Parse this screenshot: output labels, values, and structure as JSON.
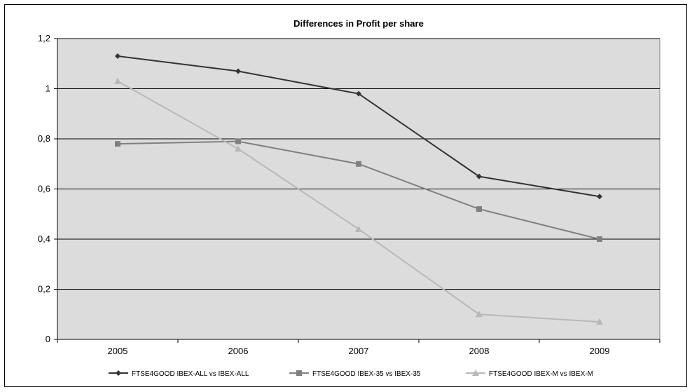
{
  "chart_data": {
    "type": "line",
    "title": "Differences in Profit per share",
    "categories": [
      "2005",
      "2006",
      "2007",
      "2008",
      "2009"
    ],
    "ylim": [
      0,
      1.2
    ],
    "yticks": [
      "0",
      "0,2",
      "0,4",
      "0,6",
      "0,8",
      "1",
      "1,2"
    ],
    "grid": true,
    "legend_position": "bottom",
    "series": [
      {
        "name": "FTSE4GOOD IBEX-ALL vs IBEX-ALL",
        "values": [
          1.13,
          1.07,
          0.98,
          0.65,
          0.57
        ],
        "marker": "diamond",
        "color": "#333333"
      },
      {
        "name": "FTSE4GOOD IBEX-35 vs IBEX-35",
        "values": [
          0.78,
          0.79,
          0.7,
          0.52,
          0.4
        ],
        "marker": "square",
        "color": "#808080"
      },
      {
        "name": "FTSE4GOOD IBEX-M vs IBEX-M",
        "values": [
          1.03,
          0.76,
          0.44,
          0.1,
          0.07
        ],
        "marker": "triangle",
        "color": "#b8b8b8"
      }
    ],
    "colors": {
      "plot_background": "#dcdcdc",
      "gridline": "#000000"
    }
  }
}
